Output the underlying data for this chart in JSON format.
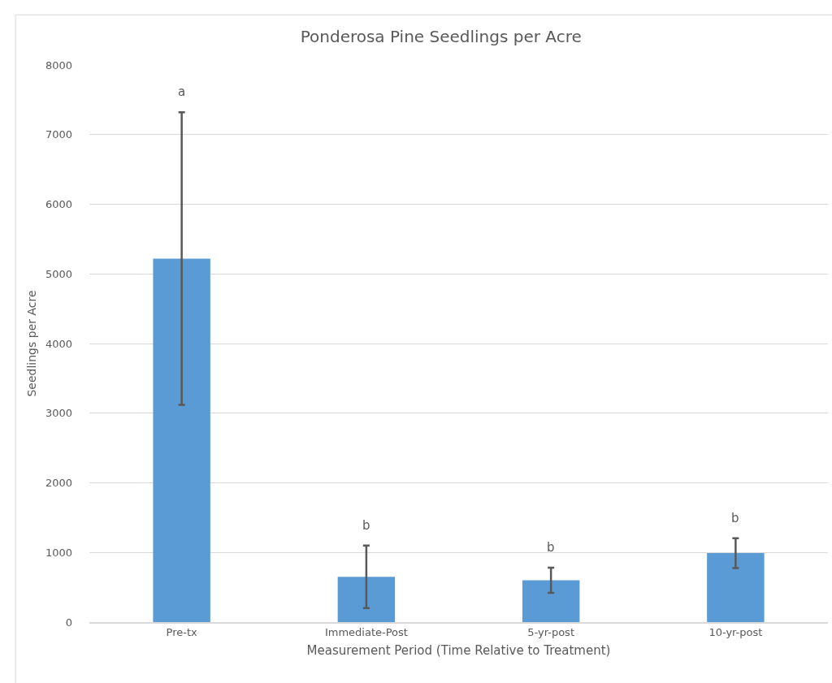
{
  "chart_data": {
    "type": "bar",
    "title": "Ponderosa Pine Seedlings per Acre",
    "xlabel": "Measurement Period (Time Relative to Treatment)",
    "ylabel": "Seedlings per Acre",
    "categories": [
      "Pre-tx",
      "Immediate-Post",
      "5-yr-post",
      "10-yr-post"
    ],
    "values": [
      5220,
      650,
      600,
      990
    ],
    "errors": [
      2100,
      450,
      180,
      215
    ],
    "color": "#5b9bd5",
    "ylim": [
      0,
      8000
    ],
    "yticks": [
      0,
      1000,
      2000,
      3000,
      4000,
      5000,
      6000,
      7000,
      8000
    ],
    "grid": "y",
    "annotations": [
      "a",
      "b",
      "b",
      "b"
    ]
  }
}
